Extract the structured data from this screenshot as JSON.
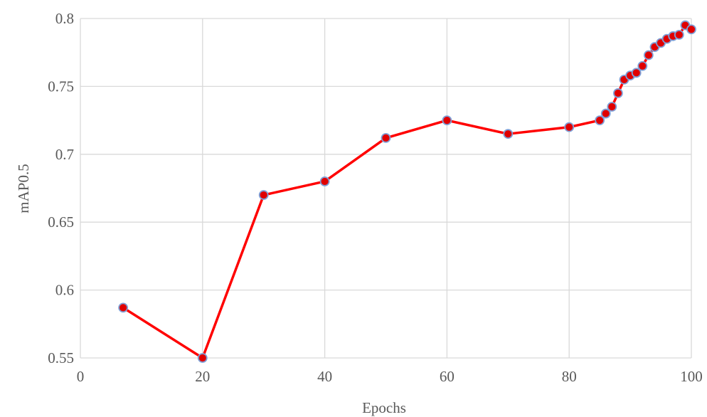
{
  "chart_data": {
    "type": "line",
    "title": "",
    "xlabel": "Epochs",
    "ylabel": "mAP0.5",
    "xlim": [
      0,
      100
    ],
    "ylim": [
      0.55,
      0.8
    ],
    "x_ticks": [
      0,
      20,
      40,
      60,
      80,
      100
    ],
    "x_tick_labels": [
      "0",
      "20",
      "40",
      "60",
      "80",
      "100"
    ],
    "y_ticks": [
      0.55,
      0.6,
      0.65,
      0.7,
      0.75,
      0.8
    ],
    "y_tick_labels": [
      "0.55",
      "0.6",
      "0.65",
      "0.7",
      "0.75",
      "0.8"
    ],
    "grid": true,
    "legend": "none",
    "series": [
      {
        "line_color": "#ff0000",
        "marker_fill": "#e00000",
        "marker_edge": "#7f9fd6",
        "x": [
          7,
          20,
          30,
          40,
          50,
          60,
          70,
          80,
          85,
          86,
          87,
          88,
          89,
          90,
          91,
          92,
          93,
          94,
          95,
          96,
          97,
          98,
          99,
          100
        ],
        "y": [
          0.587,
          0.55,
          0.67,
          0.68,
          0.712,
          0.725,
          0.715,
          0.72,
          0.725,
          0.73,
          0.735,
          0.745,
          0.755,
          0.758,
          0.76,
          0.765,
          0.773,
          0.779,
          0.782,
          0.785,
          0.787,
          0.788,
          0.795,
          0.792
        ]
      }
    ]
  }
}
